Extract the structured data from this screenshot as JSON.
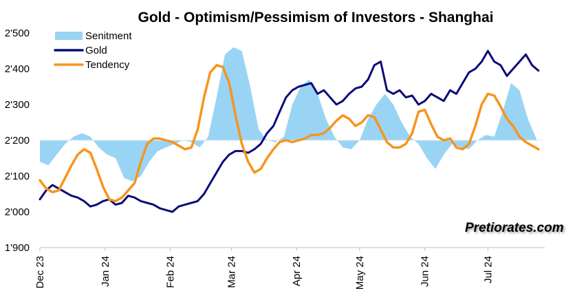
{
  "watermark": "Pretiorates.com",
  "chart_data": {
    "type": "line",
    "title": "Gold - Optimism/Pessimism of Investors - Shanghai",
    "xlabel": "",
    "ylabel": "",
    "ylim": [
      1900,
      2500
    ],
    "yticks": [
      "1'900",
      "2'000",
      "2'100",
      "2'200",
      "2'300",
      "2'400",
      "2'500"
    ],
    "ytick_values": [
      1900,
      2000,
      2100,
      2200,
      2300,
      2400,
      2500
    ],
    "xticks": [
      "Dec 23",
      "Jan 24",
      "Feb 24",
      "Mar 24",
      "Apr 24",
      "May 24",
      "Jun 24",
      "Jul 24"
    ],
    "x_index_range": [
      0,
      240
    ],
    "xtick_index": [
      0,
      31,
      62,
      91,
      122,
      152,
      183,
      213
    ],
    "baseline": 2200,
    "grid": false,
    "legend": "top-left",
    "colors": {
      "Senitment": "#99d4f5",
      "Gold": "#0a0a78",
      "Tendency": "#f7941d"
    },
    "series": [
      {
        "name": "Senitment",
        "style": "area",
        "x": [
          0,
          4,
          8,
          12,
          16,
          20,
          24,
          28,
          32,
          36,
          40,
          44,
          48,
          52,
          56,
          60,
          64,
          68,
          72,
          76,
          80,
          84,
          88,
          92,
          96,
          100,
          104,
          108,
          112,
          116,
          120,
          124,
          128,
          132,
          136,
          140,
          144,
          148,
          152,
          156,
          160,
          164,
          168,
          172,
          176,
          180,
          184,
          188,
          192,
          196,
          200,
          204,
          208,
          212,
          216,
          220,
          224,
          228,
          232,
          236
        ],
        "values": [
          2140,
          2130,
          2160,
          2190,
          2210,
          2220,
          2210,
          2180,
          2160,
          2150,
          2095,
          2085,
          2100,
          2140,
          2170,
          2180,
          2190,
          2200,
          2195,
          2180,
          2210,
          2320,
          2440,
          2460,
          2450,
          2350,
          2230,
          2200,
          2195,
          2210,
          2300,
          2350,
          2370,
          2330,
          2260,
          2210,
          2180,
          2175,
          2200,
          2260,
          2300,
          2330,
          2300,
          2250,
          2210,
          2190,
          2150,
          2120,
          2160,
          2190,
          2180,
          2175,
          2200,
          2215,
          2210,
          2280,
          2360,
          2340,
          2260,
          2205
        ]
      },
      {
        "name": "Gold",
        "style": "line",
        "x": [
          0,
          3,
          6,
          9,
          12,
          15,
          18,
          21,
          24,
          27,
          30,
          33,
          36,
          39,
          42,
          45,
          48,
          51,
          54,
          57,
          60,
          63,
          66,
          69,
          72,
          75,
          78,
          81,
          84,
          87,
          90,
          93,
          96,
          99,
          102,
          105,
          108,
          111,
          114,
          117,
          120,
          123,
          126,
          129,
          132,
          135,
          138,
          141,
          144,
          147,
          150,
          153,
          156,
          159,
          162,
          165,
          168,
          171,
          174,
          177,
          180,
          183,
          186,
          189,
          192,
          195,
          198,
          201,
          204,
          207,
          210,
          213,
          216,
          219,
          222,
          225,
          228,
          231,
          234,
          237
        ],
        "values": [
          2035,
          2060,
          2075,
          2065,
          2055,
          2045,
          2040,
          2030,
          2015,
          2020,
          2030,
          2035,
          2020,
          2025,
          2045,
          2040,
          2030,
          2025,
          2020,
          2010,
          2005,
          2000,
          2015,
          2020,
          2025,
          2030,
          2050,
          2080,
          2110,
          2140,
          2160,
          2170,
          2170,
          2165,
          2175,
          2190,
          2220,
          2240,
          2280,
          2320,
          2340,
          2350,
          2355,
          2360,
          2330,
          2340,
          2320,
          2300,
          2310,
          2330,
          2345,
          2350,
          2370,
          2410,
          2420,
          2340,
          2330,
          2340,
          2320,
          2325,
          2300,
          2310,
          2330,
          2320,
          2310,
          2340,
          2330,
          2360,
          2390,
          2400,
          2420,
          2450,
          2420,
          2410,
          2380,
          2400,
          2420,
          2440,
          2410,
          2395
        ]
      },
      {
        "name": "Tendency",
        "style": "line",
        "x": [
          0,
          3,
          6,
          9,
          12,
          15,
          18,
          21,
          24,
          27,
          30,
          33,
          36,
          39,
          42,
          45,
          48,
          51,
          54,
          57,
          60,
          63,
          66,
          69,
          72,
          75,
          78,
          81,
          84,
          87,
          90,
          93,
          96,
          99,
          102,
          105,
          108,
          111,
          114,
          117,
          120,
          123,
          126,
          129,
          132,
          135,
          138,
          141,
          144,
          147,
          150,
          153,
          156,
          159,
          162,
          165,
          168,
          171,
          174,
          177,
          180,
          183,
          186,
          189,
          192,
          195,
          198,
          201,
          204,
          207,
          210,
          213,
          216,
          219,
          222,
          225,
          228,
          231,
          234,
          237
        ],
        "values": [
          2088,
          2065,
          2055,
          2060,
          2095,
          2130,
          2160,
          2175,
          2165,
          2120,
          2070,
          2035,
          2030,
          2040,
          2060,
          2080,
          2140,
          2190,
          2205,
          2205,
          2200,
          2195,
          2185,
          2175,
          2180,
          2230,
          2320,
          2390,
          2410,
          2405,
          2360,
          2270,
          2190,
          2140,
          2110,
          2120,
          2150,
          2175,
          2195,
          2200,
          2195,
          2200,
          2205,
          2215,
          2215,
          2220,
          2235,
          2255,
          2270,
          2260,
          2240,
          2250,
          2270,
          2265,
          2230,
          2195,
          2180,
          2180,
          2190,
          2220,
          2280,
          2285,
          2245,
          2210,
          2200,
          2205,
          2180,
          2175,
          2190,
          2240,
          2300,
          2330,
          2325,
          2295,
          2260,
          2240,
          2210,
          2195,
          2185,
          2175
        ]
      }
    ]
  }
}
